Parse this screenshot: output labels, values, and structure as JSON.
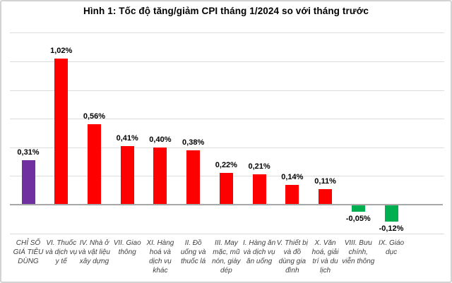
{
  "figure": {
    "title": "Hình 1: Tốc độ tăng/giảm CPI tháng 1/2024 so với tháng trước"
  },
  "colors": {
    "cpi_total_bar": "#7030A0",
    "positive_bar": "#FF0000",
    "negative_bar": "#00B050",
    "gridline": "#dcdcdc",
    "baseline": "#a8a8a8",
    "frame_border": "#d3d3d3",
    "title_text": "#000000",
    "value_label_text": "#000000",
    "category_label_text": "#3f3f3f"
  },
  "chart_data": {
    "type": "bar",
    "title": "Hình 1: Tốc độ tăng/giảm CPI tháng 1/2024 so với tháng trước",
    "unit": "%",
    "xlabel": "",
    "ylabel": "",
    "ylim": [
      -0.3,
      1.25
    ],
    "grid": "horizontal",
    "gridline_values": [
      1.2,
      1.0,
      0.8,
      0.6,
      0.4,
      0.2,
      -0.2
    ],
    "legend_position": "none",
    "value_label_decimal_separator": ",",
    "bars": [
      {
        "category": "CHỈ SỐ GIÁ TIÊU DÙNG",
        "value": 0.31,
        "label": "0,31%",
        "color": "#7030A0"
      },
      {
        "category": "VI. Thuốc và dịch vụ y tế",
        "value": 1.02,
        "label": "1,02%",
        "color": "#FF0000"
      },
      {
        "category": "IV. Nhà ở và vật liệu xây dựng",
        "value": 0.56,
        "label": "0,56%",
        "color": "#FF0000"
      },
      {
        "category": "VII. Giao thông",
        "value": 0.41,
        "label": "0,41%",
        "color": "#FF0000"
      },
      {
        "category": "XI. Hàng hoá và dịch vụ khác",
        "value": 0.4,
        "label": "0,40%",
        "color": "#FF0000"
      },
      {
        "category": "II. Đồ uống và thuốc lá",
        "value": 0.38,
        "label": "0,38%",
        "color": "#FF0000"
      },
      {
        "category": "III. May mặc, mũ nón, giày dép",
        "value": 0.22,
        "label": "0,22%",
        "color": "#FF0000"
      },
      {
        "category": "I. Hàng ăn và dịch vụ ăn uống",
        "value": 0.21,
        "label": "0,21%",
        "color": "#FF0000"
      },
      {
        "category": "V. Thiết bị và đồ dùng gia đình",
        "value": 0.14,
        "label": "0,14%",
        "color": "#FF0000"
      },
      {
        "category": "X. Văn hoá, giải trí và du lịch",
        "value": 0.11,
        "label": "0,11%",
        "color": "#FF0000"
      },
      {
        "category": "VIII. Bưu chính, viễn thông",
        "value": -0.05,
        "label": "-0,05%",
        "color": "#00B050"
      },
      {
        "category": "IX. Giáo dục",
        "value": -0.12,
        "label": "-0,12%",
        "color": "#00B050"
      }
    ]
  }
}
